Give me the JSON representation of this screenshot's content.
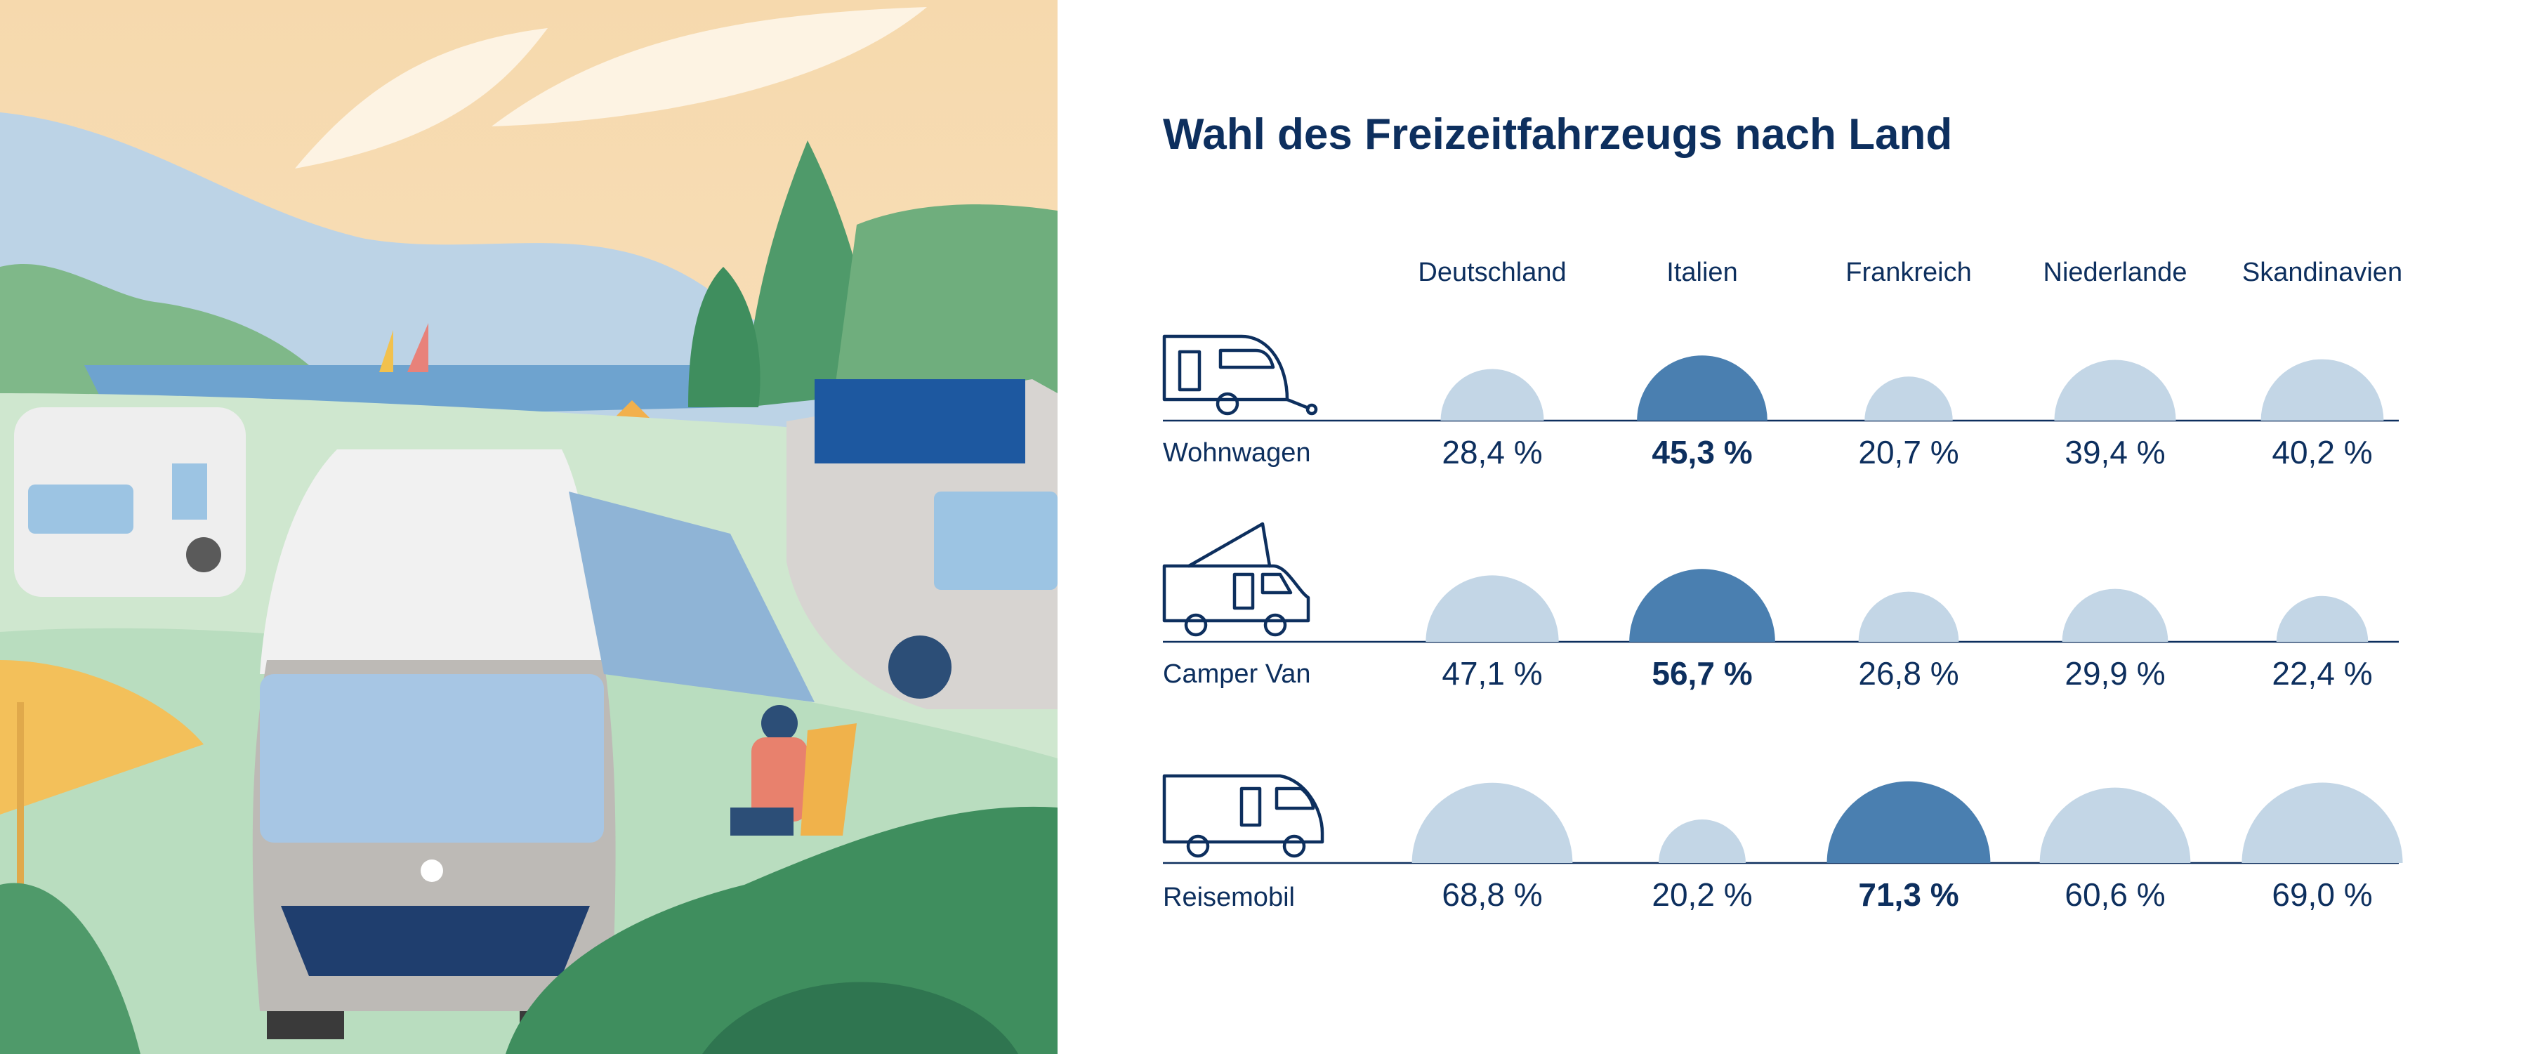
{
  "chart_data": {
    "type": "table",
    "title": "Wahl des Freizeitfahrzeugs nach Land",
    "unit": "%",
    "columns": [
      "Deutschland",
      "Italien",
      "Frankreich",
      "Niederlande",
      "Skandinavien"
    ],
    "rows": [
      {
        "label": "Wohnwagen",
        "icon": "caravan-icon",
        "values": [
          28.4,
          45.3,
          20.7,
          39.4,
          40.2
        ],
        "value_labels": [
          "28,4 %",
          "45,3 %",
          "20,7 %",
          "39,4 %",
          "40,2 %"
        ],
        "highlight_index": 1
      },
      {
        "label": "Camper Van",
        "icon": "camper-van-icon",
        "values": [
          47.1,
          56.7,
          26.8,
          29.9,
          22.4
        ],
        "value_labels": [
          "47,1 %",
          "56,7 %",
          "26,8 %",
          "29,9 %",
          "22,4 %"
        ],
        "highlight_index": 1
      },
      {
        "label": "Reisemobil",
        "icon": "motorhome-icon",
        "values": [
          68.8,
          20.2,
          71.3,
          60.6,
          69.0
        ],
        "value_labels": [
          "68,8 %",
          "20,2 %",
          "71,3 %",
          "60,6 %",
          "69,0 %"
        ],
        "highlight_index": 2
      }
    ],
    "colors": {
      "highlight": "#4a7fb0",
      "normal": "#c3d6e6",
      "text": "#0d2f5e"
    }
  },
  "illustration": {
    "icon": "camping-scene-illustration"
  }
}
